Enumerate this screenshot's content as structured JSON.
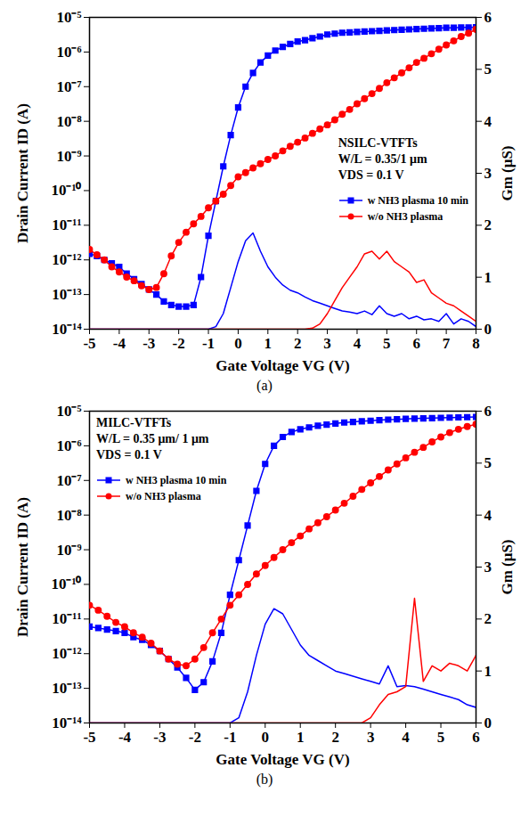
{
  "chart_data": [
    {
      "type": "line",
      "caption": "(a)",
      "annotations": [
        "NSILC-VTFTs",
        "W/L = 0.35/1 μm",
        "VDS = 0.1 V"
      ],
      "xlabel": "Gate Voltage VG (V)",
      "ylabel": "Drain Current ID (A)",
      "y2label": "Gm (μS)",
      "log": "y",
      "legend": "right",
      "xlim": [
        -5,
        8
      ],
      "xticks": [
        -5,
        -4,
        -3,
        -2,
        -1,
        0,
        1,
        2,
        3,
        4,
        5,
        6,
        7,
        8
      ],
      "ylim": [
        1e-14,
        1e-05
      ],
      "yticks": [
        {
          "value": 1e-14,
          "label": "10⁻¹⁴"
        },
        {
          "value": 1e-13,
          "label": "10⁻¹³"
        },
        {
          "value": 1e-12,
          "label": "10⁻¹²"
        },
        {
          "value": 1e-11,
          "label": "10⁻¹¹"
        },
        {
          "value": 1e-10,
          "label": "10⁻¹⁰"
        },
        {
          "value": 1e-09,
          "label": "10⁻⁹"
        },
        {
          "value": 1e-08,
          "label": "10⁻⁸"
        },
        {
          "value": 1e-07,
          "label": "10⁻⁷"
        },
        {
          "value": 1e-06,
          "label": "10⁻⁶"
        },
        {
          "value": 1e-05,
          "label": "10⁻⁵"
        }
      ],
      "y2lim": [
        0,
        6
      ],
      "y2ticks": [
        0,
        1,
        2,
        3,
        4,
        5,
        6
      ],
      "x": [
        -5,
        -4.75,
        -4.5,
        -4.25,
        -4,
        -3.75,
        -3.5,
        -3.25,
        -3,
        -2.75,
        -2.5,
        -2.25,
        -2,
        -1.75,
        -1.5,
        -1.25,
        -1,
        -0.75,
        -0.5,
        -0.25,
        0,
        0.25,
        0.5,
        0.75,
        1,
        1.25,
        1.5,
        1.75,
        2,
        2.25,
        2.5,
        2.75,
        3,
        3.25,
        3.5,
        3.75,
        4,
        4.25,
        4.5,
        4.75,
        5,
        5.25,
        5.5,
        5.75,
        6,
        6.25,
        6.5,
        6.75,
        7,
        7.25,
        7.5,
        7.75,
        8
      ],
      "series": [
        {
          "name": "w NH3 plasma 10 min",
          "color": "#0000ff",
          "marker": "square",
          "line_style": "solid",
          "values": [
            1.5e-12,
            1.3e-12,
            1e-12,
            7.9e-13,
            6.3e-13,
            4e-13,
            2.8e-13,
            2e-13,
            1.4e-13,
            1e-13,
            6.3e-14,
            5e-14,
            4.5e-14,
            4.5e-14,
            5e-14,
            3.2e-13,
            5e-12,
            5e-11,
            5e-10,
            4e-09,
            2.5e-08,
            1e-07,
            2.5e-07,
            5e-07,
            7.9e-07,
            1.1e-06,
            1.4e-06,
            1.7e-06,
            2e-06,
            2.2e-06,
            2.5e-06,
            2.8e-06,
            3.2e-06,
            3.4e-06,
            3.6e-06,
            3.7e-06,
            3.8e-06,
            3.9e-06,
            4e-06,
            4.1e-06,
            4.2e-06,
            4.3e-06,
            4.4e-06,
            4.5e-06,
            4.6e-06,
            4.7e-06,
            4.8e-06,
            4.9e-06,
            5e-06,
            5e-06,
            5.1e-06,
            5.1e-06,
            5.2e-06
          ]
        },
        {
          "name": "w/o NH3 plasma",
          "color": "#ff0000",
          "marker": "circle",
          "line_style": "solid",
          "values": [
            2e-12,
            1.4e-12,
            1e-12,
            6.3e-13,
            4.5e-13,
            3.2e-13,
            2.5e-13,
            1.8e-13,
            1.4e-13,
            1.6e-13,
            4e-13,
            1.3e-12,
            3.2e-12,
            6.3e-12,
            1.1e-11,
            1.8e-11,
            3.2e-11,
            5e-11,
            7.9e-11,
            1.4e-10,
            2.5e-10,
            3.3e-10,
            4.5e-10,
            6e-10,
            7.9e-10,
            1e-09,
            1.4e-09,
            1.9e-09,
            2.5e-09,
            3.3e-09,
            4.5e-09,
            6e-09,
            7.9e-09,
            1.1e-08,
            1.6e-08,
            2.2e-08,
            3.2e-08,
            4.5e-08,
            6.3e-08,
            8.9e-08,
            1.3e-07,
            1.8e-07,
            2.5e-07,
            3.5e-07,
            5e-07,
            6.6e-07,
            8.9e-07,
            1.2e-06,
            1.6e-06,
            2.1e-06,
            2.8e-06,
            3.5e-06,
            4.5e-06
          ]
        },
        {
          "color": "#0000ff",
          "axis": "y2",
          "line_style": "solid",
          "values": [
            0,
            0,
            0,
            0,
            0,
            0,
            0,
            0,
            0,
            0,
            0,
            0,
            0,
            0,
            0,
            0,
            0,
            0.05,
            0.3,
            0.8,
            1.3,
            1.7,
            1.85,
            1.5,
            1.2,
            1.0,
            0.85,
            0.75,
            0.7,
            0.62,
            0.55,
            0.5,
            0.45,
            0.4,
            0.35,
            0.33,
            0.3,
            0.35,
            0.28,
            0.45,
            0.3,
            0.25,
            0.3,
            0.2,
            0.25,
            0.18,
            0.2,
            0.15,
            0.3,
            0.1,
            0.2,
            0.15,
            0.05
          ]
        },
        {
          "color": "#ff0000",
          "axis": "y2",
          "line_style": "solid",
          "values": [
            0,
            0,
            0,
            0,
            0,
            0,
            0,
            0,
            0,
            0,
            0,
            0,
            0,
            0,
            0,
            0,
            0,
            0,
            0,
            0,
            0,
            0,
            0,
            0,
            0,
            0,
            0,
            0,
            0,
            0,
            0.02,
            0.1,
            0.3,
            0.55,
            0.8,
            1.0,
            1.2,
            1.45,
            1.5,
            1.35,
            1.5,
            1.3,
            1.2,
            1.1,
            0.9,
            0.95,
            0.7,
            0.6,
            0.5,
            0.45,
            0.35,
            0.25,
            0.15
          ]
        }
      ]
    },
    {
      "type": "line",
      "caption": "(b)",
      "annotations": [
        "MILC-VTFTs",
        "W/L = 0.35 μm/ 1 μm",
        "VDS = 0.1 V"
      ],
      "xlabel": "Gate Voltage VG (V)",
      "ylabel": "Drain Current ID (A)",
      "y2label": "Gm (μS)",
      "log": "y",
      "legend": "upper left",
      "xlim": [
        -5,
        6
      ],
      "xticks": [
        -5,
        -4,
        -3,
        -2,
        -1,
        0,
        1,
        2,
        3,
        4,
        5,
        6
      ],
      "ylim": [
        1e-14,
        1e-05
      ],
      "yticks": [
        {
          "value": 1e-14,
          "label": "10⁻¹⁴"
        },
        {
          "value": 1e-13,
          "label": "10⁻¹³"
        },
        {
          "value": 1e-12,
          "label": "10⁻¹²"
        },
        {
          "value": 1e-11,
          "label": "10⁻¹¹"
        },
        {
          "value": 1e-10,
          "label": "10⁻¹⁰"
        },
        {
          "value": 1e-09,
          "label": "10⁻⁹"
        },
        {
          "value": 1e-08,
          "label": "10⁻⁸"
        },
        {
          "value": 1e-07,
          "label": "10⁻⁷"
        },
        {
          "value": 1e-06,
          "label": "10⁻⁶"
        },
        {
          "value": 1e-05,
          "label": "10⁻⁵"
        }
      ],
      "y2lim": [
        0,
        6
      ],
      "y2ticks": [
        0,
        1,
        2,
        3,
        4,
        5,
        6
      ],
      "x": [
        -5,
        -4.75,
        -4.5,
        -4.25,
        -4,
        -3.75,
        -3.5,
        -3.25,
        -3,
        -2.75,
        -2.5,
        -2.25,
        -2,
        -1.75,
        -1.5,
        -1.25,
        -1,
        -0.75,
        -0.5,
        -0.25,
        0,
        0.25,
        0.5,
        0.75,
        1,
        1.25,
        1.5,
        1.75,
        2,
        2.25,
        2.5,
        2.75,
        3,
        3.25,
        3.5,
        3.75,
        4,
        4.25,
        4.5,
        4.75,
        5,
        5.25,
        5.5,
        5.75,
        6
      ],
      "series": [
        {
          "name": "w NH3 plasma 10 min",
          "color": "#0000ff",
          "marker": "square",
          "line_style": "solid",
          "values": [
            6e-12,
            5.5e-12,
            5e-12,
            4.5e-12,
            4e-12,
            3e-12,
            2.5e-12,
            1.8e-12,
            1.2e-12,
            7e-13,
            4e-13,
            2e-13,
            9e-14,
            1.5e-13,
            6e-13,
            4e-12,
            5e-11,
            5e-10,
            5e-09,
            5e-08,
            3e-07,
            1e-06,
            1.8e-06,
            2.5e-06,
            3e-06,
            3.4e-06,
            3.8e-06,
            4.1e-06,
            4.4e-06,
            4.7e-06,
            4.9e-06,
            5.1e-06,
            5.3e-06,
            5.5e-06,
            5.7e-06,
            5.8e-06,
            6e-06,
            6.1e-06,
            6.2e-06,
            6.3e-06,
            6.4e-06,
            6.5e-06,
            6.6e-06,
            6.7e-06,
            6.8e-06
          ]
        },
        {
          "name": "w/o NH3 plasma",
          "color": "#ff0000",
          "marker": "circle",
          "line_style": "solid",
          "values": [
            2.5e-11,
            1.8e-11,
            1.2e-11,
            8e-12,
            6e-12,
            4e-12,
            3e-12,
            2e-12,
            1.2e-12,
            7e-13,
            5e-13,
            4.5e-13,
            7e-13,
            1.5e-12,
            4e-12,
            1e-11,
            2.5e-11,
            5e-11,
            1e-10,
            2e-10,
            3.5e-10,
            6e-10,
            1e-09,
            1.6e-09,
            2.5e-09,
            4e-09,
            6e-09,
            9e-09,
            1.4e-08,
            2.2e-08,
            3.5e-08,
            5.5e-08,
            8.5e-08,
            1.3e-07,
            2e-07,
            3e-07,
            4.5e-07,
            6.5e-07,
            9e-07,
            1.3e-06,
            1.8e-06,
            2.4e-06,
            3e-06,
            3.6e-06,
            4.2e-06
          ]
        },
        {
          "color": "#0000ff",
          "axis": "y2",
          "line_style": "solid",
          "values": [
            0,
            0,
            0,
            0,
            0,
            0,
            0,
            0,
            0,
            0,
            0,
            0,
            0,
            0,
            0,
            0,
            0,
            0.1,
            0.6,
            1.3,
            1.9,
            2.2,
            2.1,
            1.8,
            1.5,
            1.3,
            1.2,
            1.1,
            1.0,
            0.95,
            0.9,
            0.85,
            0.8,
            0.75,
            1.1,
            0.7,
            0.72,
            0.7,
            0.65,
            0.6,
            0.55,
            0.5,
            0.45,
            0.35,
            0.3
          ]
        },
        {
          "color": "#ff0000",
          "axis": "y2",
          "line_style": "solid",
          "values": [
            0,
            0,
            0,
            0,
            0,
            0,
            0,
            0,
            0,
            0,
            0,
            0,
            0,
            0,
            0,
            0,
            0,
            0,
            0,
            0,
            0,
            0,
            0,
            0,
            0,
            0,
            0,
            0,
            0,
            0,
            0,
            0,
            0.1,
            0.35,
            0.55,
            0.6,
            0.7,
            2.4,
            0.8,
            1.1,
            1.0,
            1.15,
            1.1,
            1.0,
            1.3
          ]
        }
      ]
    }
  ]
}
